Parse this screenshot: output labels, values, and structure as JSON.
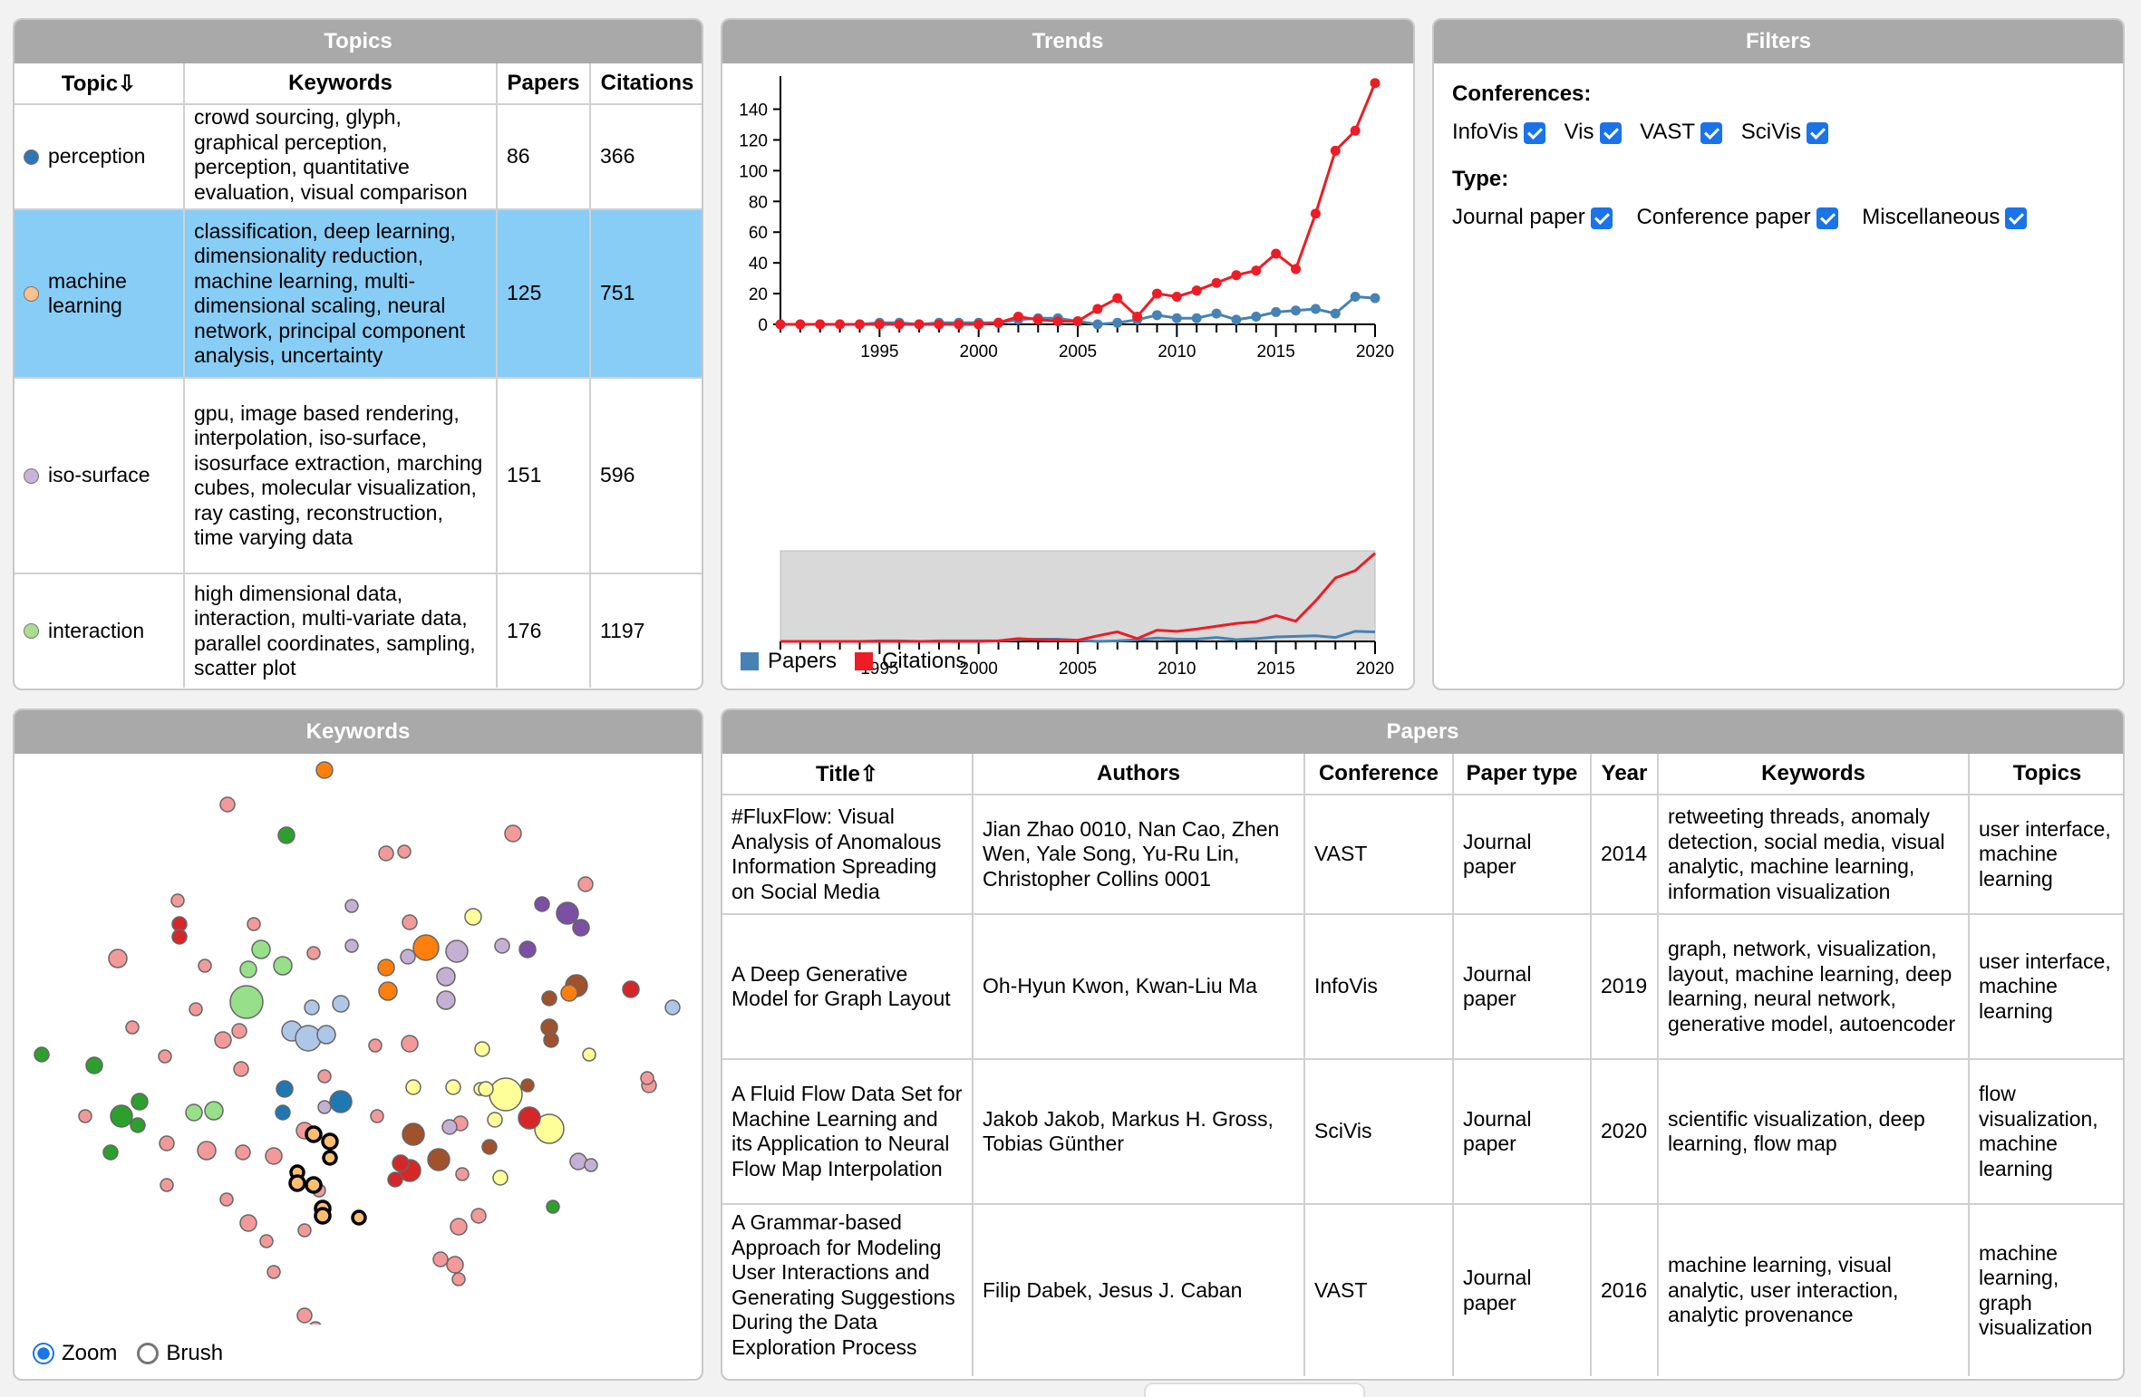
{
  "topics_panel": {
    "title": "Topics",
    "headers": [
      "Topic⇩",
      "Keywords",
      "Papers",
      "Citations"
    ],
    "rows": [
      {
        "topic": "perception",
        "color": "#2f74b5",
        "keywords": "crowd sourcing, glyph, graphical perception, perception, quantitative evaluation, visual comparison",
        "papers": "86",
        "citations": "366"
      },
      {
        "topic": "machine learning",
        "color": "#fcc08a",
        "keywords": "classification, deep learning, dimensionality reduction, machine learning, multi-dimensional scaling, neural network, principal component analysis, uncertainty",
        "papers": "125",
        "citations": "751"
      },
      {
        "topic": "iso-surface",
        "color": "#c9b3da",
        "keywords": "gpu, image based rendering, interpolation, iso-surface, isosurface extraction, marching cubes, molecular visualization, ray casting, reconstruction, time varying data",
        "papers": "151",
        "citations": "596"
      },
      {
        "topic": "interaction",
        "color": "#aadd8f",
        "keywords": "high dimensional data, interaction, multi-variate data, parallel coordinates, sampling, scatter plot",
        "papers": "176",
        "citations": "1197"
      }
    ]
  },
  "trends_panel": {
    "title": "Trends",
    "legend": [
      {
        "name": "Papers",
        "color": "#4682b4"
      },
      {
        "name": "Citations",
        "color": "#ee1c24"
      }
    ]
  },
  "chart_data": {
    "type": "line",
    "title": "Trends",
    "xlabel": "",
    "ylabel": "",
    "x": [
      1990,
      1991,
      1992,
      1993,
      1994,
      1995,
      1996,
      1997,
      1998,
      1999,
      2000,
      2001,
      2002,
      2003,
      2004,
      2005,
      2006,
      2007,
      2008,
      2009,
      2010,
      2011,
      2012,
      2013,
      2014,
      2015,
      2016,
      2017,
      2018,
      2019,
      2020
    ],
    "xlim": [
      1990,
      2020
    ],
    "ylim": [
      0,
      158
    ],
    "x_ticks": [
      1995,
      2000,
      2005,
      2010,
      2015,
      2020
    ],
    "y_ticks": [
      0,
      20,
      40,
      60,
      80,
      100,
      120,
      140
    ],
    "grid": false,
    "legend_position": "bottom-left",
    "series": [
      {
        "name": "Papers",
        "color": "#4682b4",
        "values": [
          0,
          0,
          0,
          0,
          0,
          1,
          1,
          0,
          1,
          1,
          1,
          1,
          3,
          4,
          4,
          2,
          0,
          1,
          3,
          6,
          4,
          4,
          7,
          3,
          5,
          8,
          9,
          10,
          7,
          18,
          17
        ]
      },
      {
        "name": "Citations",
        "color": "#ee1c24",
        "values": [
          0,
          0,
          0,
          0,
          0,
          0,
          0,
          0,
          0,
          0,
          0,
          1,
          5,
          3,
          2,
          2,
          10,
          17,
          5,
          20,
          18,
          22,
          27,
          32,
          35,
          46,
          36,
          72,
          113,
          126,
          157
        ]
      }
    ],
    "brush_x_ticks": [
      1995,
      2000,
      2005,
      2010,
      2015,
      2020
    ]
  },
  "filters_panel": {
    "title": "Filters",
    "conferences_label": "Conferences:",
    "conferences": [
      "InfoVis",
      "Vis",
      "VAST",
      "SciVis"
    ],
    "type_label": "Type:",
    "types": [
      "Journal paper",
      "Conference paper",
      "Miscellaneous"
    ]
  },
  "keywords_panel": {
    "title": "Keywords",
    "mode_zoom": "Zoom",
    "mode_brush": "Brush",
    "bubble_colors": {
      "pink": "#f29a9a",
      "red": "#d62728",
      "green": "#2ca02c",
      "light_green": "#98df8a",
      "blue": "#1f77b4",
      "light_blue": "#aec7e8",
      "orange": "#ff7f0e",
      "brown": "#a0522d",
      "purple": "#7b4fa3",
      "lavender": "#c5b0d5",
      "yellow": "#ffff99",
      "highlight": "#fdbf6f"
    }
  },
  "papers_panel": {
    "title": "Papers",
    "headers": [
      "Title⇧",
      "Authors",
      "Conference",
      "Paper type",
      "Year",
      "Keywords",
      "Topics"
    ],
    "rows": [
      {
        "title": "#FluxFlow: Visual Analysis of Anomalous Information Spreading on Social Media",
        "authors": "Jian Zhao 0010, Nan Cao, Zhen Wen, Yale Song, Yu-Ru Lin, Christopher Collins 0001",
        "conference": "VAST",
        "type": "Journal paper",
        "year": "2014",
        "keywords": "retweeting threads, anomaly detection, social media, visual analytic, machine learning, information visualization",
        "topics": "user interface, machine learning"
      },
      {
        "title": "A Deep Generative Model for Graph Layout",
        "authors": "Oh-Hyun Kwon, Kwan-Liu Ma",
        "conference": "InfoVis",
        "type": "Journal paper",
        "year": "2019",
        "keywords": "graph, network, visualization, layout, machine learning, deep learning, neural network, generative model, autoencoder",
        "topics": "user interface, machine learning"
      },
      {
        "title": "A Fluid Flow Data Set for Machine Learning and its Application to Neural Flow Map Interpolation",
        "authors": "Jakob Jakob, Markus H. Gross, Tobias Günther",
        "conference": "SciVis",
        "type": "Journal paper",
        "year": "2020",
        "keywords": "scientific visualization, deep learning, flow map",
        "topics": "flow visualization, machine learning"
      },
      {
        "title": "A Grammar-based Approach for Modeling User Interactions and Generating Suggestions During the Data Exploration Process",
        "authors": "Filip Dabek, Jesus J. Caban",
        "conference": "VAST",
        "type": "Journal paper",
        "year": "2016",
        "keywords": "machine learning, visual analytic, user interaction, analytic provenance",
        "topics": "machine learning, graph visualization"
      }
    ]
  }
}
